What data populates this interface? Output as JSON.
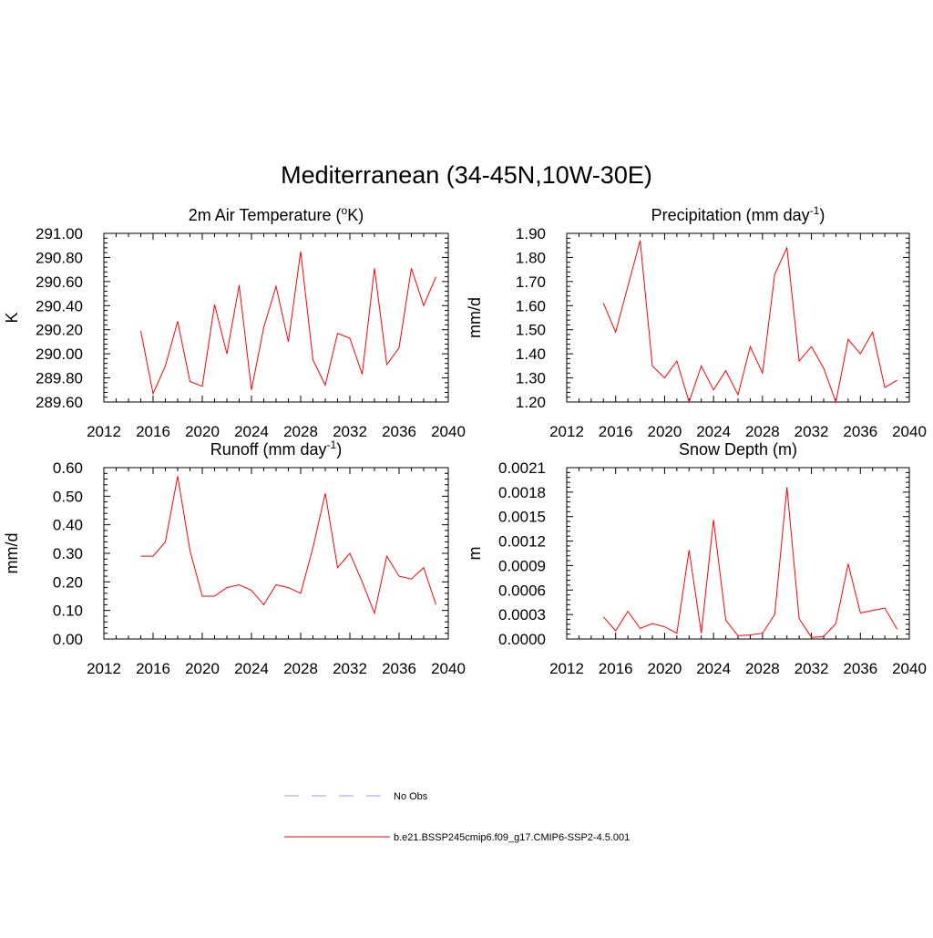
{
  "figure": {
    "title": "Mediterranean (34-45N,10W-30E)"
  },
  "colors": {
    "model_line": "#ff0000",
    "obs_line": "#9999ff",
    "axis": "#000000"
  },
  "legend": {
    "entries": [
      {
        "label": "No Obs",
        "style": "dashed",
        "color": "#9999ff"
      },
      {
        "label": "b.e21.BSSP245cmip6.f09_g17.CMIP6-SSP2-4.5.001",
        "style": "solid",
        "color": "#ff0000"
      }
    ]
  },
  "chart_data": [
    {
      "type": "line",
      "title": "2m Air Temperature (",
      "title_sup": "o",
      "title_after": "K)",
      "ylabel": "K",
      "xlim": [
        2012,
        2040
      ],
      "xticks": [
        2012,
        2016,
        2020,
        2024,
        2028,
        2032,
        2036,
        2040
      ],
      "ylim": [
        289.6,
        291.0
      ],
      "yticks": [
        "289.60",
        "289.80",
        "290.00",
        "290.20",
        "290.40",
        "290.60",
        "290.80",
        "291.00"
      ],
      "x": [
        2015,
        2016,
        2017,
        2018,
        2019,
        2020,
        2021,
        2022,
        2023,
        2024,
        2025,
        2026,
        2027,
        2028,
        2029,
        2030,
        2031,
        2032,
        2033,
        2034,
        2035,
        2036,
        2037,
        2038,
        2039
      ],
      "series": [
        {
          "name": "b.e21.BSSP245cmip6.f09_g17.CMIP6-SSP2-4.5.001",
          "values": [
            290.19,
            289.67,
            289.9,
            290.27,
            289.77,
            289.73,
            290.41,
            290.0,
            290.57,
            289.7,
            290.22,
            290.56,
            290.1,
            290.85,
            289.95,
            289.74,
            290.17,
            290.13,
            289.83,
            290.71,
            289.91,
            290.05,
            290.71,
            290.4,
            290.64
          ]
        }
      ]
    },
    {
      "type": "line",
      "title": "Precipitation (mm day",
      "title_sup": "-1",
      "title_after": ")",
      "ylabel": "mm/d",
      "xlim": [
        2012,
        2040
      ],
      "xticks": [
        2012,
        2016,
        2020,
        2024,
        2028,
        2032,
        2036,
        2040
      ],
      "ylim": [
        1.2,
        1.9
      ],
      "yticks": [
        "1.20",
        "1.30",
        "1.40",
        "1.50",
        "1.60",
        "1.70",
        "1.80",
        "1.90"
      ],
      "x": [
        2015,
        2016,
        2017,
        2018,
        2019,
        2020,
        2021,
        2022,
        2023,
        2024,
        2025,
        2026,
        2027,
        2028,
        2029,
        2030,
        2031,
        2032,
        2033,
        2034,
        2035,
        2036,
        2037,
        2038,
        2039
      ],
      "series": [
        {
          "name": "b.e21.BSSP245cmip6.f09_g17.CMIP6-SSP2-4.5.001",
          "values": [
            1.61,
            1.49,
            1.68,
            1.87,
            1.35,
            1.3,
            1.37,
            1.2,
            1.35,
            1.25,
            1.33,
            1.23,
            1.43,
            1.32,
            1.73,
            1.84,
            1.37,
            1.43,
            1.34,
            1.2,
            1.46,
            1.4,
            1.49,
            1.26,
            1.29
          ]
        }
      ]
    },
    {
      "type": "line",
      "title": "Runoff (mm day",
      "title_sup": "-1",
      "title_after": ")",
      "ylabel": "mm/d",
      "xlim": [
        2012,
        2040
      ],
      "xticks": [
        2012,
        2016,
        2020,
        2024,
        2028,
        2032,
        2036,
        2040
      ],
      "ylim": [
        0.0,
        0.6
      ],
      "yticks": [
        "0.00",
        "0.10",
        "0.20",
        "0.30",
        "0.40",
        "0.50",
        "0.60"
      ],
      "x": [
        2015,
        2016,
        2017,
        2018,
        2019,
        2020,
        2021,
        2022,
        2023,
        2024,
        2025,
        2026,
        2027,
        2028,
        2029,
        2030,
        2031,
        2032,
        2033,
        2034,
        2035,
        2036,
        2037,
        2038,
        2039
      ],
      "series": [
        {
          "name": "b.e21.BSSP245cmip6.f09_g17.CMIP6-SSP2-4.5.001",
          "values": [
            0.29,
            0.29,
            0.34,
            0.57,
            0.31,
            0.15,
            0.15,
            0.18,
            0.19,
            0.17,
            0.12,
            0.19,
            0.18,
            0.16,
            0.32,
            0.51,
            0.25,
            0.3,
            0.2,
            0.09,
            0.29,
            0.22,
            0.21,
            0.25,
            0.12
          ]
        }
      ]
    },
    {
      "type": "line",
      "title": "Snow Depth (m)",
      "title_sup": "",
      "title_after": "",
      "ylabel": "m",
      "xlim": [
        2012,
        2040
      ],
      "xticks": [
        2012,
        2016,
        2020,
        2024,
        2028,
        2032,
        2036,
        2040
      ],
      "ylim": [
        0.0,
        0.0021
      ],
      "yticks": [
        "0.0000",
        "0.0003",
        "0.0006",
        "0.0009",
        "0.0012",
        "0.0015",
        "0.0018",
        "0.0021"
      ],
      "x": [
        2015,
        2016,
        2017,
        2018,
        2019,
        2020,
        2021,
        2022,
        2023,
        2024,
        2025,
        2026,
        2027,
        2028,
        2029,
        2030,
        2031,
        2032,
        2033,
        2034,
        2035,
        2036,
        2037,
        2038,
        2039
      ],
      "series": [
        {
          "name": "b.e21.BSSP245cmip6.f09_g17.CMIP6-SSP2-4.5.001",
          "values": [
            0.00027,
            0.0001,
            0.00034,
            0.00013,
            0.00019,
            0.00015,
            7e-05,
            0.00109,
            7e-05,
            0.00146,
            0.00023,
            4e-05,
            5e-05,
            7e-05,
            0.0003,
            0.00186,
            0.00025,
            2e-05,
            3e-05,
            0.00019,
            0.00092,
            0.00032,
            0.00035,
            0.00038,
            0.00012
          ]
        }
      ]
    }
  ]
}
